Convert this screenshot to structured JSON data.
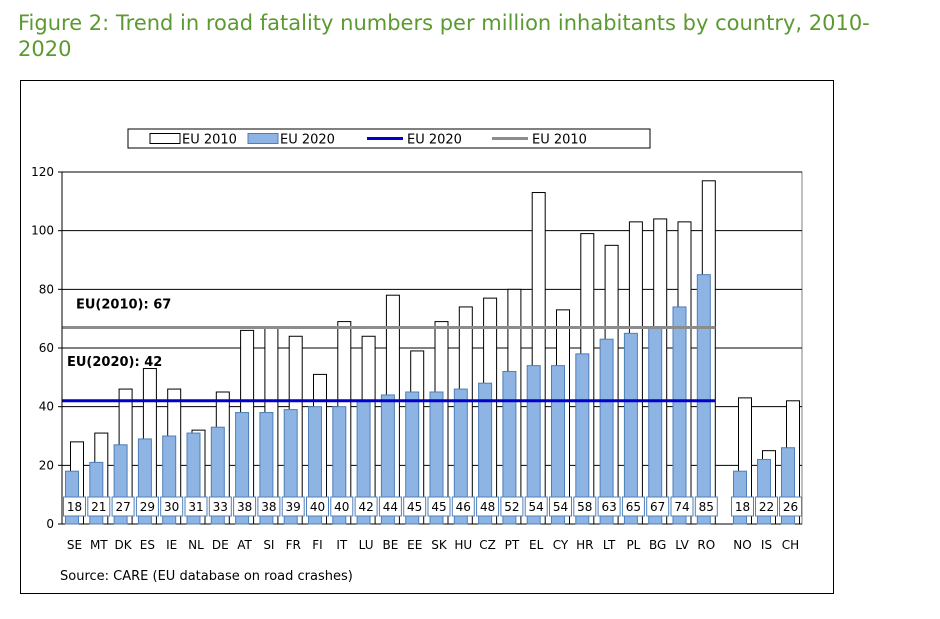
{
  "figure_title": "Figure 2: Trend in road fatality numbers per million inhabitants by country, 2010-2020",
  "chart_data": {
    "type": "bar",
    "title": "",
    "xlabel": "",
    "ylabel": "",
    "ylim": [
      0,
      120
    ],
    "yticks": [
      0,
      20,
      40,
      60,
      80,
      100,
      120
    ],
    "grid": true,
    "legend_position": "top",
    "legend": [
      "EU 2010",
      "EU 2020",
      "EU 2020",
      "EU 2010"
    ],
    "colors": {
      "bar_2010": "#ffffff",
      "bar_2020": "#8db4e2",
      "line_2020": "#0000cc",
      "line_2010": "#8c8c8c"
    },
    "categories": [
      "SE",
      "MT",
      "DK",
      "ES",
      "IE",
      "NL",
      "DE",
      "AT",
      "SI",
      "FR",
      "FI",
      "IT",
      "LU",
      "BE",
      "EE",
      "SK",
      "HU",
      "CZ",
      "PT",
      "EL",
      "CY",
      "HR",
      "LT",
      "PL",
      "BG",
      "LV",
      "RO",
      "NO",
      "IS",
      "CH"
    ],
    "series": [
      {
        "name": "EU 2010",
        "values": [
          28,
          31,
          46,
          53,
          46,
          32,
          45,
          66,
          67,
          64,
          51,
          69,
          64,
          78,
          59,
          69,
          74,
          77,
          80,
          113,
          73,
          99,
          95,
          103,
          104,
          103,
          117,
          43,
          25,
          42
        ]
      },
      {
        "name": "EU 2020",
        "values": [
          18,
          21,
          27,
          29,
          30,
          31,
          33,
          38,
          38,
          39,
          40,
          40,
          42,
          44,
          45,
          45,
          46,
          48,
          52,
          54,
          54,
          58,
          63,
          65,
          67,
          74,
          85,
          18,
          22,
          26
        ]
      }
    ],
    "value_labels": [
      "18",
      "21",
      "27",
      "29",
      "30",
      "31",
      "33",
      "38",
      "38",
      "39",
      "40",
      "40",
      "42",
      "44",
      "45",
      "45",
      "46",
      "48",
      "52",
      "54",
      "54",
      "58",
      "63",
      "65",
      "67",
      "74",
      "85",
      "18",
      "22",
      "26"
    ],
    "reference_lines": [
      {
        "label": "EU(2010): 67",
        "value": 67
      },
      {
        "label": "EU(2020): 42",
        "value": 42
      }
    ],
    "source": "Source: CARE (EU database on road crashes)"
  }
}
